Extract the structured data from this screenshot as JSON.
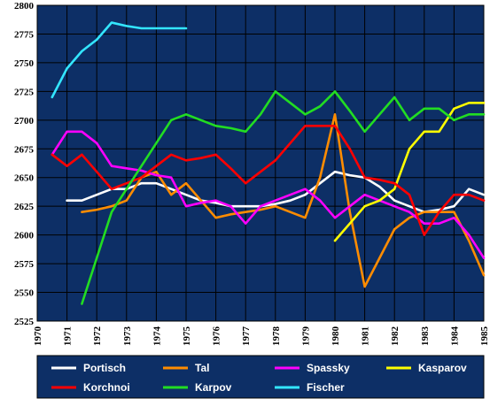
{
  "chart_data": {
    "type": "line",
    "xlim": [
      1970,
      1985
    ],
    "ylim": [
      2525,
      2800
    ],
    "x_ticks": [
      1970,
      1971,
      1972,
      1973,
      1974,
      1975,
      1976,
      1977,
      1978,
      1979,
      1980,
      1981,
      1982,
      1983,
      1984,
      1985
    ],
    "y_ticks": [
      2525,
      2550,
      2575,
      2600,
      2625,
      2650,
      2675,
      2700,
      2725,
      2750,
      2775,
      2800
    ],
    "grid": true,
    "plot_background": "#0d2f66",
    "legend_position": "bottom",
    "series": [
      {
        "name": "Portisch",
        "color": "#ffffff",
        "x": [
          1971,
          1971.5,
          1972,
          1972.5,
          1973,
          1973.5,
          1974,
          1974.5,
          1975,
          1975.5,
          1976,
          1976.5,
          1977,
          1977.5,
          1978,
          1978.5,
          1979,
          1979.5,
          1980,
          1980.5,
          1981,
          1981.5,
          1982,
          1982.5,
          1983,
          1983.5,
          1984,
          1984.5,
          1985
        ],
        "values": [
          2630,
          2630,
          2635,
          2640,
          2640,
          2645,
          2645,
          2640,
          2635,
          2630,
          2628,
          2625,
          2625,
          2625,
          2627,
          2630,
          2635,
          2645,
          2655,
          2652,
          2650,
          2642,
          2630,
          2625,
          2620,
          2622,
          2625,
          2640,
          2635
        ]
      },
      {
        "name": "Tal",
        "color": "#ff8c00",
        "x": [
          1971.5,
          1972,
          1972.5,
          1973,
          1973.5,
          1974,
          1974.5,
          1975,
          1975.5,
          1976,
          1976.5,
          1977,
          1977.5,
          1978,
          1978.5,
          1979,
          1979.5,
          1980,
          1980.5,
          1981,
          1981.5,
          1982,
          1982.5,
          1983,
          1983.5,
          1984,
          1984.5,
          1985
        ],
        "values": [
          2620,
          2622,
          2625,
          2630,
          2650,
          2655,
          2635,
          2645,
          2630,
          2615,
          2618,
          2620,
          2622,
          2625,
          2620,
          2615,
          2650,
          2705,
          2620,
          2555,
          2580,
          2605,
          2615,
          2620,
          2620,
          2620,
          2595,
          2565
        ]
      },
      {
        "name": "Spassky",
        "color": "#ff00ff",
        "x": [
          1970.5,
          1971,
          1971.5,
          1972,
          1972.5,
          1973,
          1973.5,
          1974,
          1974.5,
          1975,
          1975.5,
          1976,
          1976.5,
          1977,
          1977.5,
          1978,
          1978.5,
          1979,
          1979.5,
          1980,
          1980.5,
          1981,
          1981.5,
          1982,
          1982.5,
          1983,
          1983.5,
          1984,
          1984.5,
          1985
        ],
        "values": [
          2670,
          2690,
          2690,
          2680,
          2660,
          2658,
          2656,
          2652,
          2650,
          2625,
          2628,
          2630,
          2625,
          2610,
          2625,
          2630,
          2635,
          2640,
          2630,
          2615,
          2625,
          2635,
          2630,
          2625,
          2620,
          2610,
          2610,
          2615,
          2600,
          2580
        ]
      },
      {
        "name": "Kasparov",
        "color": "#ffff00",
        "x": [
          1980,
          1980.5,
          1981,
          1981.5,
          1982,
          1982.5,
          1983,
          1983.5,
          1984,
          1984.5,
          1985
        ],
        "values": [
          2595,
          2610,
          2625,
          2630,
          2640,
          2675,
          2690,
          2690,
          2710,
          2715,
          2715
        ]
      },
      {
        "name": "Korchnoi",
        "color": "#ff0000",
        "x": [
          1970.5,
          1971,
          1971.5,
          1972,
          1972.5,
          1973,
          1973.5,
          1974,
          1974.5,
          1975,
          1975.5,
          1976,
          1976.5,
          1977,
          1977.5,
          1978,
          1978.5,
          1979,
          1979.5,
          1980,
          1980.5,
          1981,
          1981.5,
          1982,
          1982.5,
          1983,
          1983.5,
          1984,
          1984.5,
          1985
        ],
        "values": [
          2670,
          2660,
          2670,
          2655,
          2640,
          2645,
          2650,
          2660,
          2670,
          2665,
          2667,
          2670,
          2658,
          2645,
          2655,
          2665,
          2680,
          2695,
          2695,
          2695,
          2675,
          2650,
          2648,
          2645,
          2635,
          2600,
          2620,
          2635,
          2635,
          2630
        ]
      },
      {
        "name": "Karpov",
        "color": "#22dd22",
        "x": [
          1971.5,
          1972,
          1972.5,
          1973,
          1973.5,
          1974,
          1974.5,
          1975,
          1975.5,
          1976,
          1976.5,
          1977,
          1977.5,
          1978,
          1978.5,
          1979,
          1979.5,
          1980,
          1980.5,
          1981,
          1981.5,
          1982,
          1982.5,
          1983,
          1983.5,
          1984,
          1984.5,
          1985
        ],
        "values": [
          2540,
          2580,
          2620,
          2640,
          2660,
          2680,
          2700,
          2705,
          2700,
          2695,
          2693,
          2690,
          2705,
          2725,
          2715,
          2705,
          2712,
          2725,
          2708,
          2690,
          2705,
          2720,
          2700,
          2710,
          2710,
          2700,
          2705,
          2705
        ]
      },
      {
        "name": "Fischer",
        "color": "#33e6ff",
        "x": [
          1970.5,
          1971,
          1971.5,
          1972,
          1972.5,
          1973,
          1973.5,
          1974,
          1974.5,
          1975
        ],
        "values": [
          2720,
          2745,
          2760,
          2770,
          2785,
          2782,
          2780,
          2780,
          2780,
          2780
        ]
      }
    ]
  }
}
